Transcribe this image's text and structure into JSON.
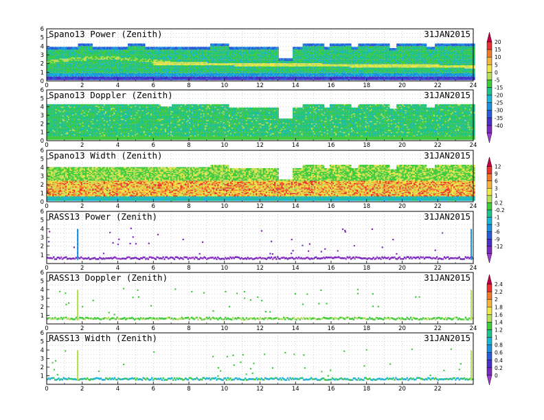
{
  "chart_data": [
    {
      "type": "heatmap",
      "title": "Spano13 Power (Zenith)",
      "date": "31JAN2015",
      "xlim": [
        0,
        24
      ],
      "ylim": [
        0,
        6
      ],
      "xticks": [
        "0",
        "2",
        "4",
        "6",
        "8",
        "10",
        "12",
        "14",
        "16",
        "18",
        "20",
        "22",
        "24"
      ],
      "yticks": [
        "0",
        "1",
        "2",
        "3",
        "4",
        "5",
        "6"
      ],
      "grid": true,
      "colorbar": "cb1",
      "pattern": "power",
      "top_km": [
        [
          0,
          3.85
        ],
        [
          1.7,
          4.3
        ],
        [
          2.5,
          3.85
        ],
        [
          4.5,
          4.3
        ],
        [
          5.5,
          3.85
        ],
        [
          9.2,
          4.3
        ],
        [
          10.2,
          3.85
        ],
        [
          13.0,
          2.6
        ],
        [
          13.8,
          3.85
        ],
        [
          14.4,
          4.3
        ],
        [
          15.6,
          3.85
        ],
        [
          15.9,
          4.3
        ],
        [
          17.1,
          3.85
        ],
        [
          17.5,
          4.3
        ],
        [
          19.2,
          3.7
        ],
        [
          19.6,
          4.3
        ],
        [
          21.3,
          3.85
        ],
        [
          21.8,
          4.3
        ],
        [
          23.9,
          4.3
        ]
      ]
    },
    {
      "type": "heatmap",
      "title": "Spano13 Doppler (Zenith)",
      "date": "31JAN2015",
      "xlim": [
        0,
        24
      ],
      "ylim": [
        0,
        6
      ],
      "xticks": [
        "0",
        "2",
        "4",
        "6",
        "8",
        "10",
        "12",
        "14",
        "16",
        "18",
        "20",
        "22",
        "24"
      ],
      "yticks": [
        "0",
        "1",
        "2",
        "3",
        "4",
        "5",
        "6"
      ],
      "grid": true,
      "colorbar": "cb1",
      "pattern": "doppler",
      "top_km": [
        [
          0,
          4.3
        ],
        [
          1.7,
          4.3
        ],
        [
          6.4,
          4.0
        ],
        [
          7.0,
          4.3
        ],
        [
          9.2,
          4.3
        ],
        [
          10.2,
          3.85
        ],
        [
          13.0,
          2.6
        ],
        [
          13.8,
          3.85
        ],
        [
          14.4,
          4.3
        ],
        [
          15.6,
          3.85
        ],
        [
          15.9,
          4.3
        ],
        [
          17.1,
          3.85
        ],
        [
          17.5,
          4.3
        ],
        [
          19.2,
          3.7
        ],
        [
          19.6,
          4.3
        ],
        [
          21.3,
          3.85
        ],
        [
          21.8,
          4.3
        ],
        [
          23.9,
          4.3
        ]
      ]
    },
    {
      "type": "heatmap",
      "title": "Spano13 Width (Zenith)",
      "date": "31JAN2015",
      "xlim": [
        0,
        24
      ],
      "ylim": [
        0,
        6
      ],
      "xticks": [
        "0",
        "2",
        "4",
        "6",
        "8",
        "10",
        "12",
        "14",
        "16",
        "18",
        "20",
        "22",
        "24"
      ],
      "yticks": [
        "0",
        "1",
        "2",
        "3",
        "4",
        "5",
        "6"
      ],
      "grid": true,
      "colorbar": "cb2",
      "pattern": "width",
      "top_km": [
        [
          0,
          4.0
        ],
        [
          9.2,
          4.3
        ],
        [
          10.2,
          3.85
        ],
        [
          13.0,
          2.6
        ],
        [
          13.8,
          3.85
        ],
        [
          14.4,
          4.3
        ],
        [
          15.6,
          3.85
        ],
        [
          15.9,
          4.3
        ],
        [
          17.1,
          3.85
        ],
        [
          17.5,
          4.3
        ],
        [
          19.2,
          3.7
        ],
        [
          19.6,
          4.3
        ],
        [
          21.3,
          3.85
        ],
        [
          21.8,
          4.3
        ],
        [
          23.9,
          4.3
        ]
      ]
    },
    {
      "type": "scatter",
      "title": "RASS13 Power (Zenith)",
      "date": "31JAN2015",
      "xlim": [
        0,
        24
      ],
      "ylim": [
        0,
        6
      ],
      "xticks": [
        "0",
        "2",
        "4",
        "6",
        "8",
        "10",
        "12",
        "14",
        "16",
        "18",
        "20",
        "22",
        "24"
      ],
      "yticks": [
        "1",
        "2",
        "3",
        "4",
        "5",
        "6"
      ],
      "grid": true,
      "colorbar": "cb2",
      "pattern": "rass_power"
    },
    {
      "type": "scatter",
      "title": "RASS13 Doppler (Zenith)",
      "date": "31JAN2015",
      "xlim": [
        0,
        24
      ],
      "ylim": [
        0,
        6
      ],
      "xticks": [
        "0",
        "2",
        "4",
        "6",
        "8",
        "10",
        "12",
        "14",
        "16",
        "18",
        "20",
        "22",
        "24"
      ],
      "yticks": [
        "1",
        "2",
        "3",
        "4",
        "5",
        "6"
      ],
      "grid": true,
      "colorbar": "cb3",
      "pattern": "rass_doppler"
    },
    {
      "type": "scatter",
      "title": "RASS13 Width (Zenith)",
      "date": "31JAN2015",
      "xlim": [
        0,
        24
      ],
      "ylim": [
        0,
        6
      ],
      "xticks": [
        "0",
        "2",
        "4",
        "6",
        "8",
        "10",
        "12",
        "14",
        "16",
        "18",
        "20",
        "22"
      ],
      "yticks": [
        "1",
        "2",
        "3",
        "4",
        "5",
        "6"
      ],
      "grid": true,
      "colorbar": "cb3",
      "pattern": "rass_width"
    }
  ],
  "colorbars": {
    "cb1": {
      "labels": [
        "20",
        "15",
        "10",
        "5",
        "0",
        "-5",
        "-15",
        "-20",
        "-25",
        "-30",
        "-35",
        "-40"
      ],
      "colors": [
        "#c8004a",
        "#ee3030",
        "#f07a2a",
        "#f5b33c",
        "#f0e646",
        "#b6e05a",
        "#3fcd3c",
        "#1fc48a",
        "#1ab6d6",
        "#1f8fe0",
        "#2a5bd8",
        "#4a2fc8",
        "#7a2ac0",
        "#a23bd0"
      ]
    },
    "cb2": {
      "labels": [
        "12",
        "9",
        "6",
        "3",
        "1",
        "0.2",
        "-0.2",
        "-1",
        "-3",
        "-6",
        "-9",
        "-12"
      ],
      "colors": [
        "#c8004a",
        "#ee3030",
        "#f07a2a",
        "#f5b33c",
        "#f0e646",
        "#b6e05a",
        "#3fcd3c",
        "#1fc48a",
        "#1ab6d6",
        "#1f8fe0",
        "#2a5bd8",
        "#4a2fc8",
        "#7a2ac0",
        "#a23bd0"
      ]
    },
    "cb3": {
      "labels": [
        "2.4",
        "2.2",
        "2",
        "1.8",
        "1.6",
        "1.4",
        "1.2",
        "1",
        "0.8",
        "0.6",
        "0.4",
        "0.2",
        "0"
      ],
      "colors": [
        "#c8004a",
        "#ee3030",
        "#f07a2a",
        "#f5b33c",
        "#f0e646",
        "#b6e05a",
        "#3fcd3c",
        "#1fc48a",
        "#1ab6d6",
        "#1f8fe0",
        "#2a5bd8",
        "#4a2fc8",
        "#7a2ac0",
        "#a23bd0"
      ]
    }
  }
}
